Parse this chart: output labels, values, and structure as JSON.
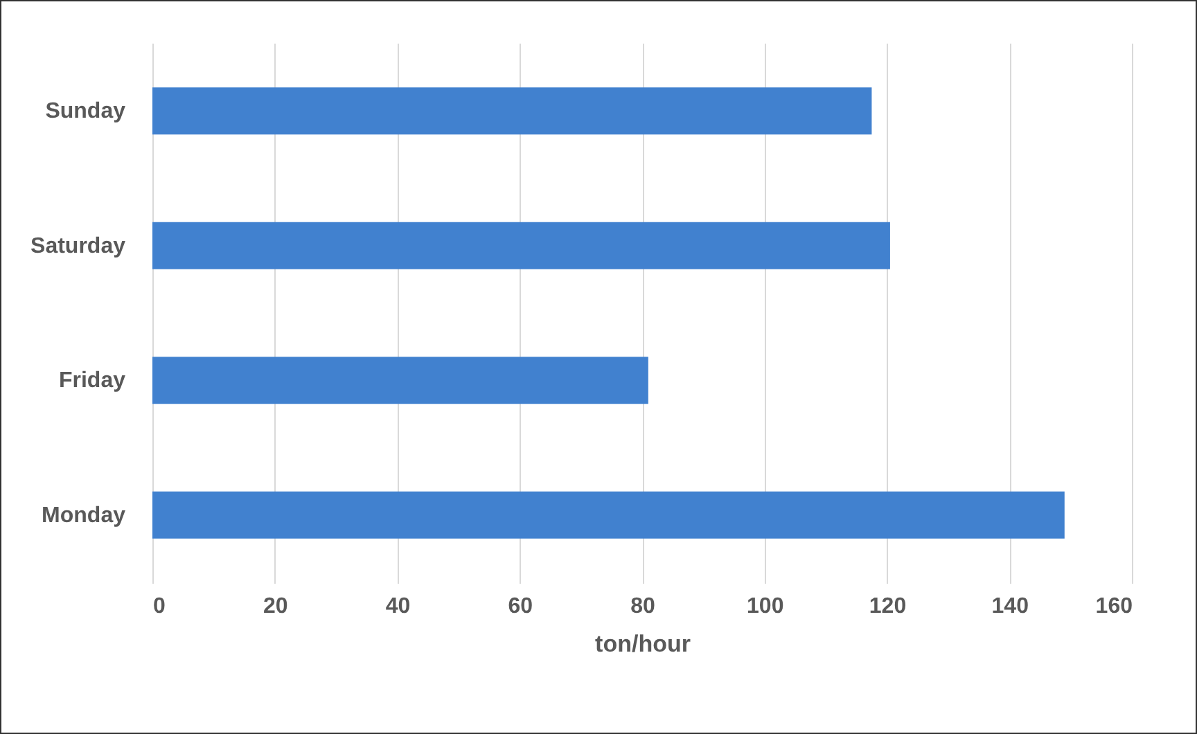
{
  "chart_data": {
    "type": "bar",
    "orientation": "horizontal",
    "xlabel": "ton/hour",
    "categories": [
      "Sunday",
      "Saturday",
      "Friday",
      "Monday"
    ],
    "values": [
      117.5,
      120.5,
      81,
      149
    ],
    "color": "#4181cf",
    "xlim": [
      0,
      160
    ],
    "xticks": [
      0,
      20,
      40,
      60,
      80,
      100,
      120,
      140,
      160
    ],
    "grid": "x"
  }
}
